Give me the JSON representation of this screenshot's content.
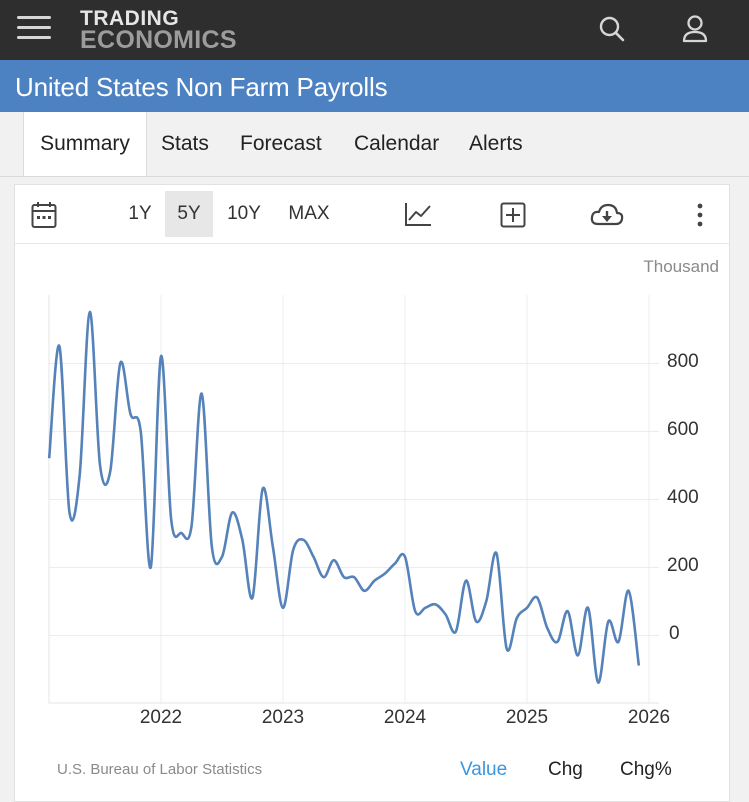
{
  "header": {
    "logo_line1": "TRADING",
    "logo_line2": "ECONOMICS",
    "menu_icon": "hamburger-menu-icon",
    "search_icon": "search-icon",
    "user_icon": "user-icon"
  },
  "page": {
    "title": "United States Non Farm Payrolls"
  },
  "tabs": [
    {
      "label": "Summary",
      "active": true
    },
    {
      "label": "Stats",
      "active": false
    },
    {
      "label": "Forecast",
      "active": false
    },
    {
      "label": "Calendar",
      "active": false
    },
    {
      "label": "Alerts",
      "active": false
    }
  ],
  "toolbar": {
    "calendar_icon": "calendar-icon",
    "ranges": [
      {
        "label": "1Y",
        "active": false
      },
      {
        "label": "5Y",
        "active": true
      },
      {
        "label": "10Y",
        "active": false
      },
      {
        "label": "MAX",
        "active": false
      }
    ],
    "chart_type_icon": "line-chart-icon",
    "compare_icon": "plus-square-icon",
    "download_icon": "cloud-download-icon",
    "more_icon": "more-vertical-icon"
  },
  "chart_data": {
    "type": "line",
    "unit": "Thousand",
    "yticks": [
      "800",
      "600",
      "400",
      "200",
      "0"
    ],
    "ylim": [
      -200,
      1000
    ],
    "xticks": [
      "2022",
      "2023",
      "2024",
      "2025",
      "2026"
    ],
    "grid": true,
    "series": [
      {
        "color": "#5582b9",
        "points": [
          [
            "2021-02",
            520
          ],
          [
            "2021-03",
            850
          ],
          [
            "2021-04",
            360
          ],
          [
            "2021-05",
            470
          ],
          [
            "2021-06",
            950
          ],
          [
            "2021-07",
            500
          ],
          [
            "2021-08",
            480
          ],
          [
            "2021-09",
            800
          ],
          [
            "2021-10",
            650
          ],
          [
            "2021-11",
            600
          ],
          [
            "2021-12",
            200
          ],
          [
            "2022-01",
            820
          ],
          [
            "2022-02",
            340
          ],
          [
            "2022-03",
            300
          ],
          [
            "2022-04",
            320
          ],
          [
            "2022-05",
            710
          ],
          [
            "2022-06",
            260
          ],
          [
            "2022-07",
            230
          ],
          [
            "2022-08",
            360
          ],
          [
            "2022-09",
            280
          ],
          [
            "2022-10",
            110
          ],
          [
            "2022-11",
            430
          ],
          [
            "2022-12",
            260
          ],
          [
            "2023-01",
            80
          ],
          [
            "2023-02",
            250
          ],
          [
            "2023-03",
            280
          ],
          [
            "2023-04",
            230
          ],
          [
            "2023-05",
            170
          ],
          [
            "2023-06",
            220
          ],
          [
            "2023-07",
            170
          ],
          [
            "2023-08",
            170
          ],
          [
            "2023-09",
            130
          ],
          [
            "2023-10",
            160
          ],
          [
            "2023-11",
            180
          ],
          [
            "2023-12",
            210
          ],
          [
            "2024-01",
            230
          ],
          [
            "2024-02",
            70
          ],
          [
            "2024-03",
            80
          ],
          [
            "2024-04",
            90
          ],
          [
            "2024-05",
            60
          ],
          [
            "2024-06",
            10
          ],
          [
            "2024-07",
            160
          ],
          [
            "2024-08",
            40
          ],
          [
            "2024-09",
            100
          ],
          [
            "2024-10",
            240
          ],
          [
            "2024-11",
            -40
          ],
          [
            "2024-12",
            50
          ],
          [
            "2025-01",
            80
          ],
          [
            "2025-02",
            110
          ],
          [
            "2025-03",
            20
          ],
          [
            "2025-04",
            -20
          ],
          [
            "2025-05",
            70
          ],
          [
            "2025-06",
            -60
          ],
          [
            "2025-07",
            80
          ],
          [
            "2025-08",
            -140
          ],
          [
            "2025-09",
            40
          ],
          [
            "2025-10",
            -20
          ],
          [
            "2025-11",
            130
          ],
          [
            "2025-12",
            -90
          ]
        ]
      }
    ]
  },
  "footer": {
    "source": "U.S. Bureau of Labor Statistics",
    "value_label": "Value",
    "chg_label": "Chg",
    "chgpct_label": "Chg%"
  }
}
